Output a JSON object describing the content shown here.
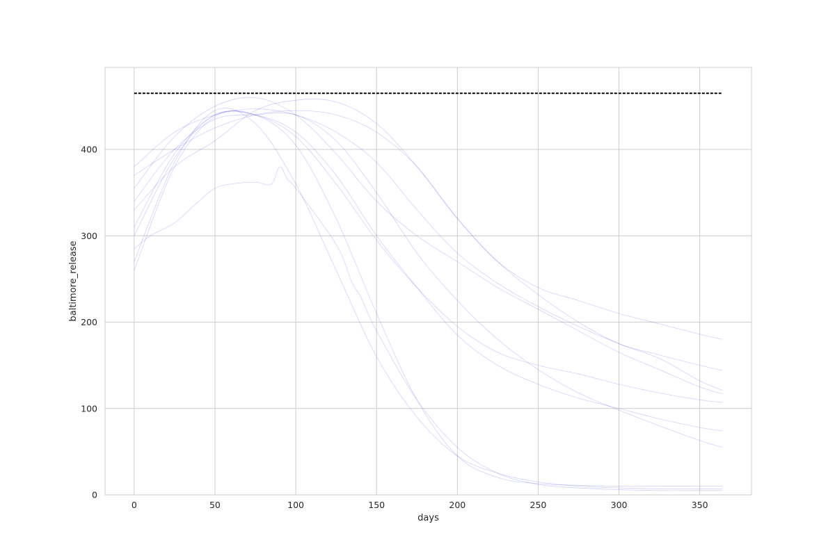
{
  "chart_data": {
    "type": "line",
    "title": "",
    "xlabel": "days",
    "ylabel": "baltimore_release",
    "xlim": [
      -18,
      382
    ],
    "ylim": [
      0,
      495
    ],
    "xticks": [
      0,
      50,
      100,
      150,
      200,
      250,
      300,
      350
    ],
    "yticks": [
      0,
      100,
      200,
      300,
      400
    ],
    "grid": true,
    "legend": "none",
    "colors": {
      "series": "#3333ff",
      "reference": "#000000",
      "grid": "#cccccc",
      "frame": "#cccccc",
      "text": "#262626"
    },
    "reference_line": {
      "style": "dashed",
      "x": [
        0,
        364
      ],
      "y": [
        465,
        465
      ]
    },
    "series": [
      {
        "x": [
          0,
          25,
          50,
          75,
          100,
          125,
          150,
          175,
          200,
          225,
          250,
          275,
          300,
          325,
          350,
          364
        ],
        "y": [
          260,
          380,
          438,
          440,
          405,
          320,
          210,
          110,
          45,
          20,
          13,
          11,
          10,
          10,
          10,
          10
        ]
      },
      {
        "x": [
          0,
          25,
          50,
          75,
          100,
          125,
          150,
          175,
          200,
          225,
          250,
          275,
          300,
          325,
          350,
          364
        ],
        "y": [
          270,
          385,
          445,
          430,
          360,
          260,
          160,
          90,
          45,
          25,
          15,
          10,
          8,
          7,
          7,
          7
        ]
      },
      {
        "x": [
          0,
          10,
          25,
          40,
          50,
          60,
          75,
          85,
          90,
          95,
          100,
          125,
          135,
          140,
          150,
          175,
          200,
          225,
          250,
          275,
          300,
          325,
          350,
          364
        ],
        "y": [
          285,
          300,
          315,
          340,
          355,
          360,
          362,
          360,
          380,
          365,
          355,
          290,
          245,
          230,
          190,
          110,
          55,
          25,
          12,
          8,
          6,
          5,
          5,
          5
        ]
      },
      {
        "x": [
          0,
          25,
          50,
          75,
          100,
          125,
          150,
          175,
          200,
          225,
          250,
          275,
          300,
          325,
          350,
          364
        ],
        "y": [
          300,
          390,
          440,
          440,
          420,
          370,
          300,
          240,
          185,
          150,
          128,
          112,
          100,
          88,
          78,
          74
        ]
      },
      {
        "x": [
          0,
          25,
          50,
          75,
          100,
          125,
          150,
          175,
          200,
          225,
          250,
          275,
          300,
          325,
          350,
          364
        ],
        "y": [
          310,
          395,
          440,
          440,
          415,
          360,
          295,
          240,
          195,
          165,
          150,
          140,
          128,
          118,
          110,
          107
        ]
      },
      {
        "x": [
          0,
          25,
          50,
          75,
          100,
          125,
          150,
          175,
          200,
          225,
          250,
          275,
          300,
          325,
          350,
          364
        ],
        "y": [
          340,
          400,
          435,
          440,
          440,
          410,
          350,
          280,
          225,
          180,
          145,
          118,
          98,
          80,
          63,
          55
        ]
      },
      {
        "x": [
          0,
          25,
          50,
          75,
          100,
          125,
          150,
          175,
          200,
          225,
          250,
          275,
          300,
          325,
          350,
          364
        ],
        "y": [
          355,
          415,
          450,
          460,
          440,
          395,
          340,
          300,
          270,
          240,
          215,
          190,
          165,
          145,
          125,
          117
        ]
      },
      {
        "x": [
          0,
          25,
          50,
          75,
          100,
          125,
          150,
          175,
          200,
          225,
          250,
          275,
          300,
          325,
          350,
          364
        ],
        "y": [
          380,
          420,
          440,
          447,
          440,
          420,
          385,
          330,
          280,
          245,
          218,
          195,
          175,
          158,
          132,
          121
        ]
      },
      {
        "x": [
          0,
          25,
          50,
          75,
          100,
          125,
          150,
          175,
          200,
          225,
          250,
          275,
          300,
          325,
          350,
          364
        ],
        "y": [
          330,
          380,
          410,
          445,
          457,
          455,
          430,
          380,
          320,
          270,
          232,
          200,
          175,
          162,
          150,
          144
        ]
      },
      {
        "x": [
          0,
          25,
          50,
          75,
          100,
          125,
          150,
          175,
          200,
          225,
          250,
          275,
          300,
          325,
          350,
          364
        ],
        "y": [
          370,
          400,
          425,
          440,
          445,
          440,
          420,
          380,
          320,
          270,
          240,
          225,
          210,
          198,
          186,
          180
        ]
      }
    ]
  }
}
